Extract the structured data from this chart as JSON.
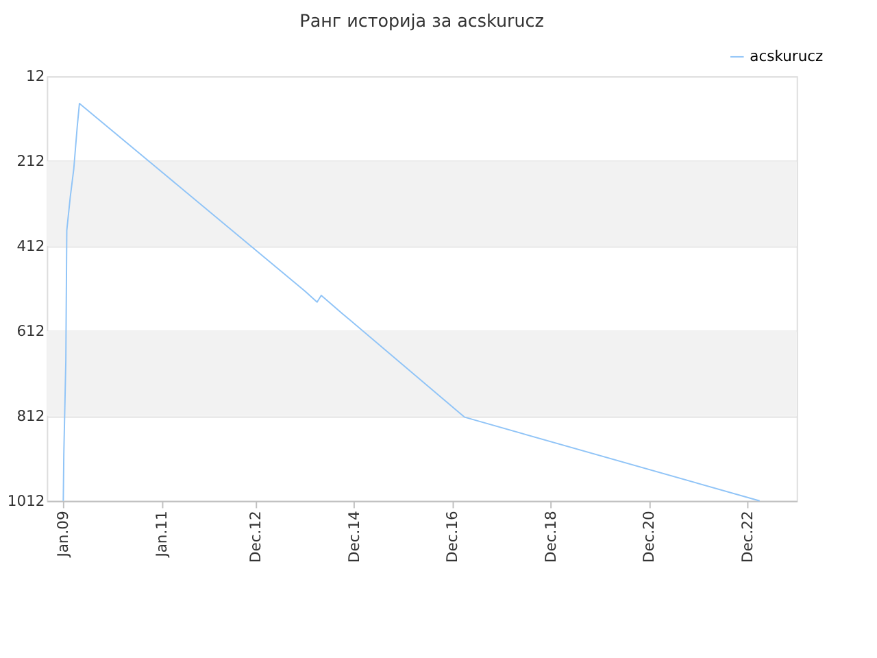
{
  "chart_data": {
    "type": "line",
    "title": "Ранг историја за acskurucz",
    "x": [
      "2009-01-01",
      "2009-01-05",
      "2009-01-20",
      "2009-01-27",
      "2009-02-22",
      "2009-03-20",
      "2009-04-15",
      "2009-05-01",
      "2013-12-01",
      "2014-03-01",
      "2014-04-01",
      "2014-09-01",
      "2017-03-01",
      "2023-03-01"
    ],
    "series": [
      {
        "name": "acskurucz",
        "color": "#90c4f7",
        "values": [
          1012,
          902,
          681,
          375,
          296,
          230,
          129,
          76,
          518,
          544,
          528,
          570,
          815,
          1012
        ]
      }
    ],
    "xlim": [
      "2008-09-01",
      "2023-12-01"
    ],
    "xticks": [
      {
        "value": "2009-01-01",
        "label": "Jan.09"
      },
      {
        "value": "2011-01-01",
        "label": "Jan.11"
      },
      {
        "value": "2012-12-01",
        "label": "Dec.12"
      },
      {
        "value": "2014-12-01",
        "label": "Dec.14"
      },
      {
        "value": "2016-12-01",
        "label": "Dec.16"
      },
      {
        "value": "2018-12-01",
        "label": "Dec.18"
      },
      {
        "value": "2020-12-01",
        "label": "Dec.20"
      },
      {
        "value": "2022-12-01",
        "label": "Dec.22"
      }
    ],
    "ylim": [
      1012,
      12
    ],
    "yticks": [
      12,
      212,
      412,
      612,
      812,
      1012
    ],
    "bands": [
      {
        "axis": "y",
        "from": 212,
        "to": 412,
        "color": "#f2f2f2"
      },
      {
        "axis": "y",
        "from": 612,
        "to": 812,
        "color": "#f2f2f2"
      }
    ],
    "grid": "y",
    "legend": "top right",
    "marker": "none",
    "line_style": "solid"
  }
}
